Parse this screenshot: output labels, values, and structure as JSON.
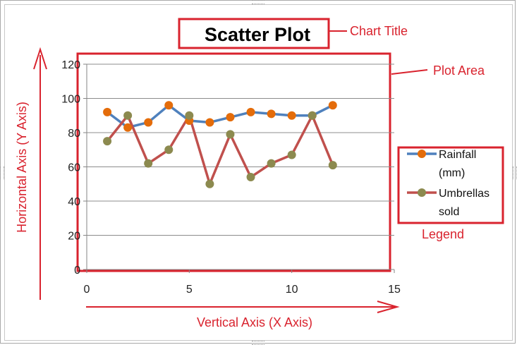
{
  "chart_data": {
    "type": "scatter",
    "title": "Scatter Plot",
    "xlim": [
      0,
      15
    ],
    "ylim": [
      0,
      120
    ],
    "x_ticks": [
      0,
      5,
      10,
      15
    ],
    "y_ticks": [
      0,
      20,
      40,
      60,
      80,
      100,
      120
    ],
    "grid": "horizontal",
    "legend_position": "right",
    "series": [
      {
        "name": "Rainfall (mm)",
        "legend_lines": [
          "Rainfall",
          "(mm)"
        ],
        "line_color": "#4f81bd",
        "marker_color": "#e46c0a",
        "x": [
          1,
          2,
          3,
          4,
          5,
          6,
          7,
          8,
          9,
          10,
          11,
          12
        ],
        "y": [
          92,
          83,
          86,
          96,
          87,
          86,
          89,
          92,
          91,
          90,
          90,
          96
        ]
      },
      {
        "name": "Umbrellas sold",
        "legend_lines": [
          "Umbrellas",
          "sold"
        ],
        "line_color": "#c0504d",
        "marker_color": "#8c8a4f",
        "x": [
          1,
          2,
          3,
          4,
          5,
          6,
          7,
          8,
          9,
          10,
          11,
          12
        ],
        "y": [
          75,
          90,
          62,
          70,
          90,
          50,
          79,
          54,
          62,
          67,
          90,
          61
        ]
      }
    ]
  },
  "annotations": {
    "chart_title": "Chart Title",
    "plot_area": "Plot Area",
    "legend": "Legend",
    "y_axis": "Horizontal Axis (Y Axis)",
    "x_axis": "Vertical Axis (X Axis)"
  },
  "colors": {
    "annotation_red": "#d9232e",
    "axis_gray": "#868686",
    "grid_gray": "#8c8c8c"
  }
}
